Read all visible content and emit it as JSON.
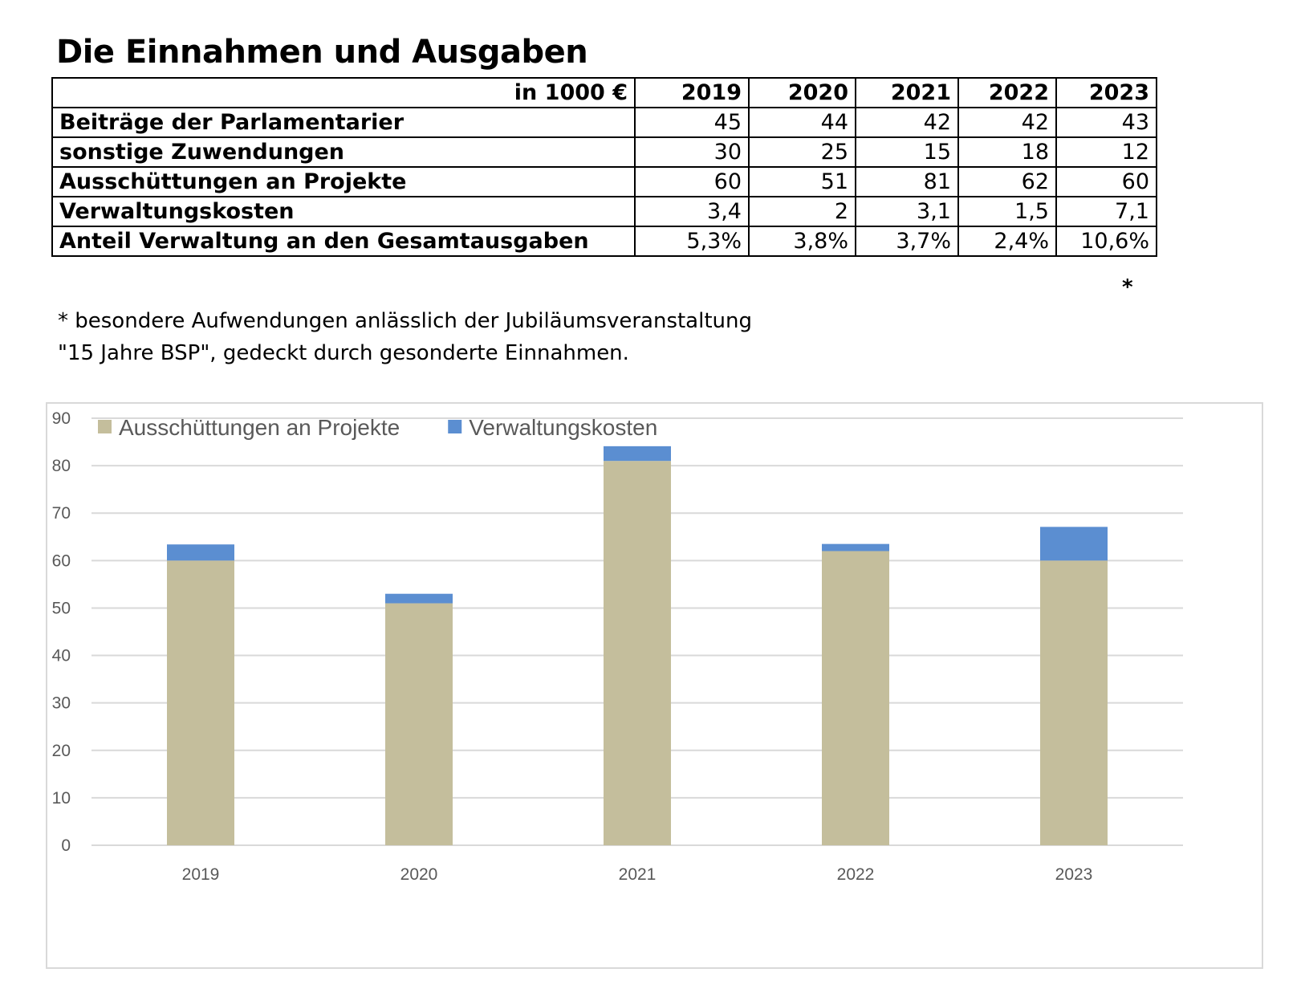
{
  "title": "Die Einnahmen und Ausgaben",
  "table": {
    "header_label": "in 1000 €",
    "years": [
      "2019",
      "2020",
      "2021",
      "2022",
      "2023"
    ],
    "rows": [
      {
        "label": "Beiträge der Parlamentarier",
        "values": [
          "45",
          "44",
          "42",
          "42",
          "43"
        ]
      },
      {
        "label": "sonstige Zuwendungen",
        "values": [
          "30",
          "25",
          "15",
          "18",
          "12"
        ]
      },
      {
        "label": "Ausschüttungen an Projekte",
        "values": [
          "60",
          "51",
          "81",
          "62",
          "60"
        ]
      },
      {
        "label": "Verwaltungskosten",
        "values": [
          "3,4",
          "2",
          "3,1",
          "1,5",
          "7,1"
        ]
      },
      {
        "label": "Anteil Verwaltung an den Gesamtausgaben",
        "values": [
          "5,3%",
          "3,8%",
          "3,7%",
          "2,4%",
          "10,6%"
        ]
      }
    ],
    "footnote_marker": "*"
  },
  "footnote": {
    "line1": "* besondere Aufwendungen anlässlich der Jubiläumsveranstaltung",
    "line2": "\"15 Jahre BSP\", gedeckt durch gesonderte Einnahmen."
  },
  "chart_data": {
    "type": "bar",
    "stacked": true,
    "categories": [
      "2019",
      "2020",
      "2021",
      "2022",
      "2023"
    ],
    "series": [
      {
        "name": "Ausschüttungen an Projekte",
        "values": [
          60,
          51,
          81,
          62,
          60
        ],
        "color": "#c4be9c"
      },
      {
        "name": "Verwaltungskosten",
        "values": [
          3.4,
          2,
          3.1,
          1.5,
          7.1
        ],
        "color": "#5b8ed1"
      }
    ],
    "ylim": [
      0,
      90
    ],
    "yticks": [
      0,
      10,
      20,
      30,
      40,
      50,
      60,
      70,
      80,
      90
    ],
    "grid": true,
    "legend": "top-left",
    "gridColor": "#d9d9d9",
    "tickColor": "#595959"
  }
}
